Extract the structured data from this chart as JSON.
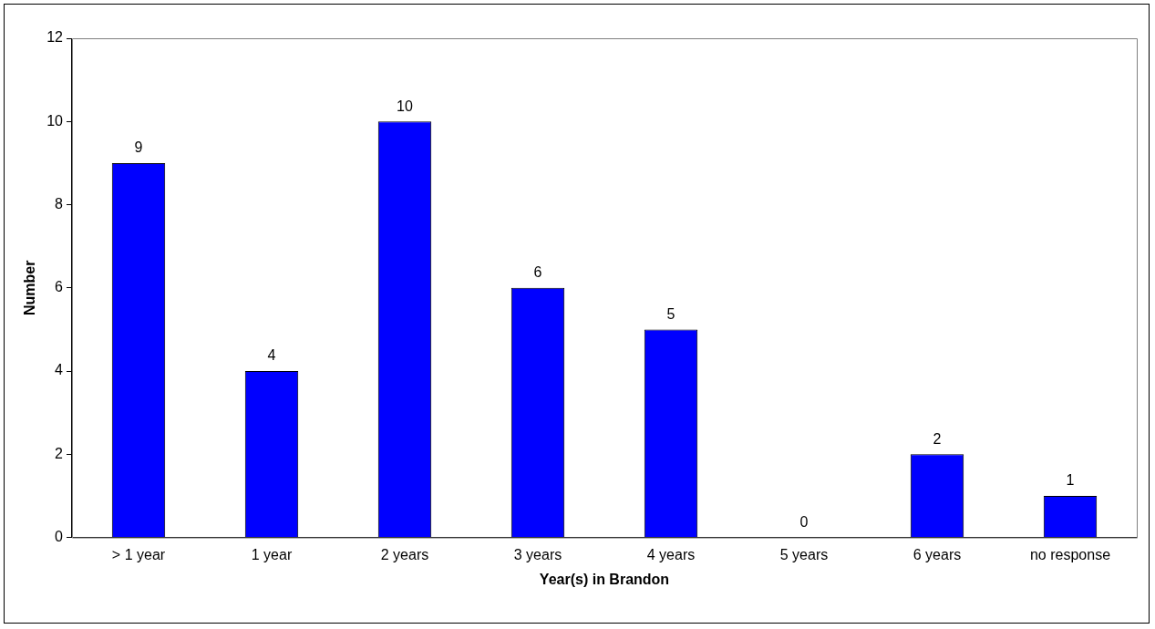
{
  "chart_data": {
    "type": "bar",
    "xlabel": "Year(s) in Brandon",
    "ylabel": "Number",
    "categories": [
      "> 1 year",
      "1 year",
      "2 years",
      "3 years",
      "4 years",
      "5 years",
      "6 years",
      "no response"
    ],
    "values": [
      9,
      4,
      10,
      6,
      5,
      0,
      2,
      1
    ],
    "color": "#0000ff",
    "ylim": [
      0,
      12
    ],
    "yticks": [
      0,
      2,
      4,
      6,
      8,
      10,
      12
    ],
    "data_labels": true,
    "legend": false,
    "grid": false
  }
}
